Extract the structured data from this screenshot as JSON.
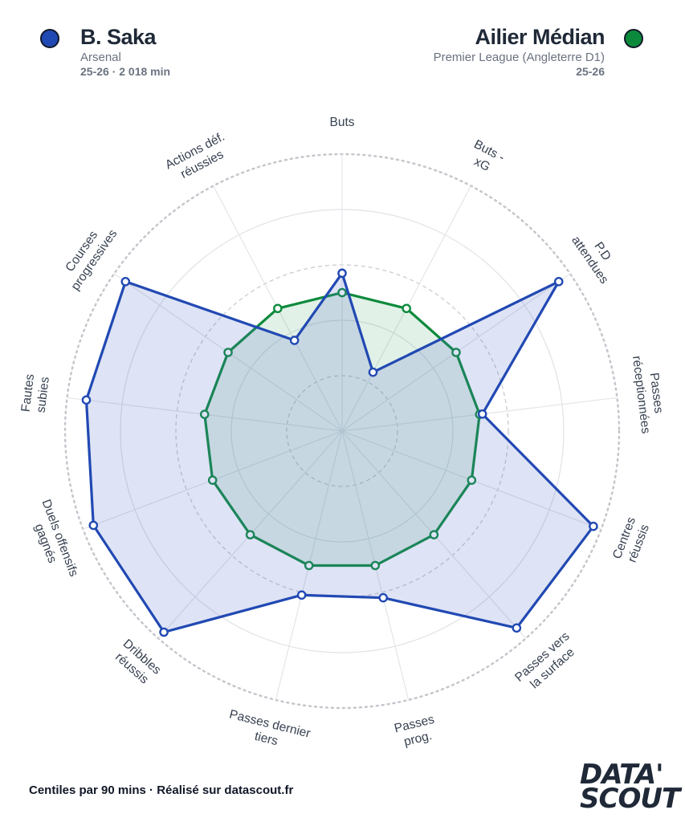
{
  "header": {
    "player": {
      "name": "B. Saka",
      "club": "Arsenal",
      "season_info": "25-26 · 2 018 min",
      "color": "#2149b3"
    },
    "comparison": {
      "name": "Ailier Médian",
      "league": "Premier League (Angleterre D1)",
      "season": "25-26",
      "color": "#0c8a3c"
    }
  },
  "chart_data": {
    "type": "radar",
    "scale": "percentile",
    "range": [
      0,
      100
    ],
    "axes": [
      [
        "Buts"
      ],
      [
        "Buts -",
        "xG"
      ],
      [
        "P.D",
        "attendues"
      ],
      [
        "Passes",
        "réceptionnées"
      ],
      [
        "Centres",
        "réussis"
      ],
      [
        "Passes vers",
        "la surface"
      ],
      [
        "Passes",
        "prog."
      ],
      [
        "Passes dernier",
        "tiers"
      ],
      [
        "Dribbles",
        "réussis"
      ],
      [
        "Duels offensifs",
        "gagnés"
      ],
      [
        "Fautes",
        "subies"
      ],
      [
        "Courses",
        "progressives"
      ],
      [
        "Actions déf.",
        "réussies"
      ]
    ],
    "series": [
      {
        "name": "B. Saka",
        "color": "#2149b3",
        "fill": "rgba(91,117,207,0.2)",
        "values": [
          57,
          24,
          95,
          51,
          97,
          95,
          62,
          61,
          97,
          96,
          93,
          95,
          37
        ]
      },
      {
        "name": "Ailier Médian",
        "color": "#0c8a3c",
        "fill": "rgba(12,138,60,0.12)",
        "values": [
          50,
          50,
          50,
          50,
          50,
          50,
          50,
          50,
          50,
          50,
          50,
          50,
          50
        ]
      }
    ],
    "grid": true
  },
  "footer": {
    "text": "Centiles par 90 mins · Réalisé sur datascout.fr"
  },
  "logo": {
    "line1": "DATA'",
    "line2": "SCOUT"
  }
}
